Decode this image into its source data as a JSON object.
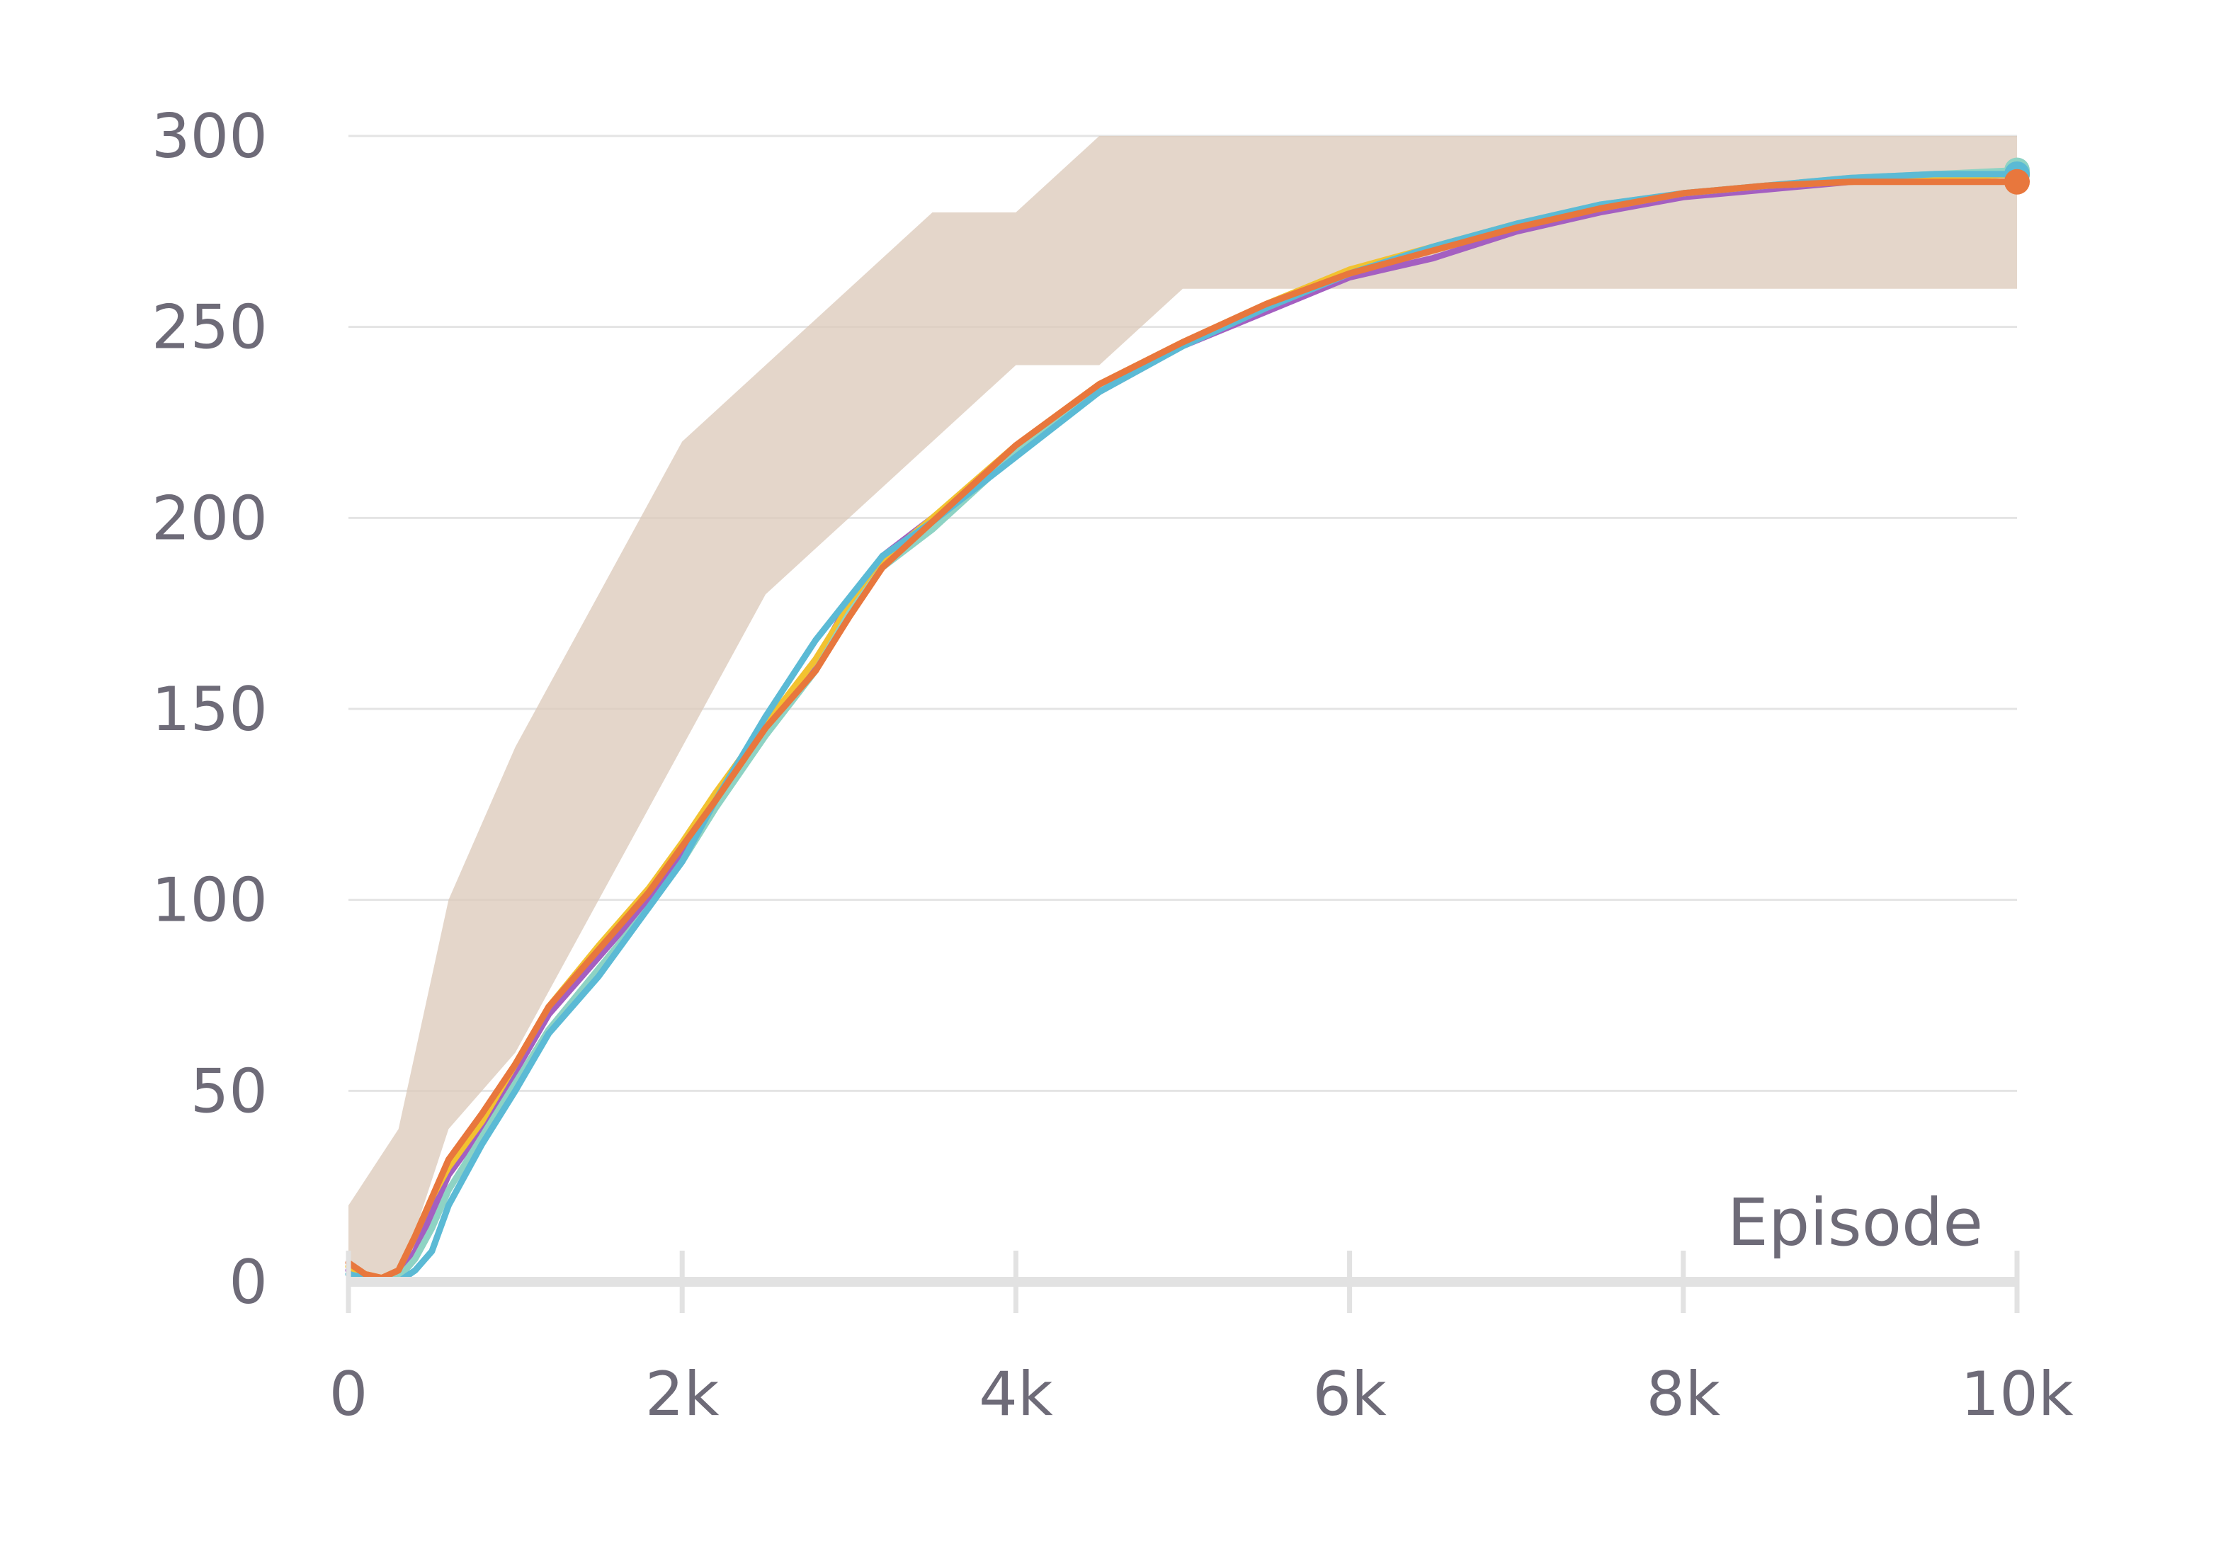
{
  "chart_data": {
    "type": "line",
    "title": "",
    "xlabel": "Episode",
    "ylabel": "",
    "xlim": [
      0,
      10000
    ],
    "ylim": [
      0,
      300
    ],
    "x_ticks": [
      0,
      2000,
      4000,
      6000,
      8000,
      10000
    ],
    "x_tick_labels": [
      "0",
      "2k",
      "4k",
      "6k",
      "8k",
      "10k"
    ],
    "y_ticks": [
      0,
      50,
      100,
      150,
      200,
      250,
      300
    ],
    "y_tick_labels": [
      "0",
      "50",
      "100",
      "150",
      "200",
      "250",
      "300"
    ],
    "grid": true,
    "legend": "none",
    "raw_band": {
      "color": "#dccbbb",
      "x": [
        0,
        300,
        600,
        1000,
        1500,
        2000,
        2500,
        3000,
        3500,
        4000,
        4500,
        5000,
        6000,
        7000,
        8000,
        9000,
        10000
      ],
      "upper": [
        20,
        40,
        100,
        140,
        180,
        220,
        240,
        260,
        280,
        280,
        300,
        300,
        300,
        300,
        300,
        300,
        300
      ],
      "lower": [
        0,
        0,
        40,
        60,
        100,
        140,
        180,
        200,
        220,
        240,
        240,
        260,
        260,
        260,
        260,
        260,
        260
      ]
    },
    "series": [
      {
        "color": "#a45fc1",
        "x": [
          0,
          100,
          200,
          300,
          400,
          500,
          600,
          800,
          1000,
          1200,
          1500,
          1800,
          2000,
          2200,
          2500,
          2800,
          3000,
          3200,
          3500,
          4000,
          4500,
          5000,
          5500,
          6000,
          6500,
          7000,
          7500,
          8000,
          8500,
          9000,
          9500,
          10000
        ],
        "y": [
          3,
          1,
          0,
          1,
          8,
          18,
          28,
          40,
          55,
          70,
          85,
          100,
          112,
          125,
          145,
          162,
          178,
          190,
          200,
          218,
          233,
          245,
          254,
          263,
          268,
          275,
          280,
          284,
          286,
          288,
          289,
          290
        ]
      },
      {
        "color": "#f2c230",
        "x": [
          0,
          100,
          200,
          300,
          400,
          500,
          600,
          800,
          1000,
          1200,
          1500,
          1800,
          2000,
          2200,
          2500,
          2800,
          3000,
          3200,
          3500,
          4000,
          4500,
          5000,
          5500,
          6000,
          6500,
          7000,
          7500,
          8000,
          8500,
          9000,
          9500,
          10000
        ],
        "y": [
          4,
          2,
          1,
          3,
          12,
          22,
          30,
          42,
          57,
          72,
          88,
          103,
          115,
          128,
          146,
          163,
          177,
          189,
          200,
          219,
          235,
          246,
          256,
          265,
          271,
          277,
          281,
          285,
          287,
          288,
          289,
          290
        ]
      },
      {
        "color": "#8ed3c4",
        "x": [
          0,
          100,
          200,
          300,
          400,
          500,
          600,
          800,
          1000,
          1200,
          1500,
          1800,
          2000,
          2200,
          2500,
          2800,
          3000,
          3200,
          3500,
          4000,
          4500,
          5000,
          5500,
          6000,
          6500,
          7000,
          7500,
          8000,
          8500,
          9000,
          9500,
          10000
        ],
        "y": [
          2,
          1,
          0,
          1,
          6,
          14,
          24,
          38,
          52,
          66,
          82,
          98,
          110,
          124,
          143,
          160,
          175,
          187,
          197,
          217,
          233,
          245,
          255,
          264,
          271,
          277,
          282,
          285,
          287,
          289,
          290,
          291
        ]
      },
      {
        "color": "#5bbad5",
        "x": [
          0,
          100,
          200,
          300,
          400,
          500,
          600,
          800,
          1000,
          1200,
          1500,
          1800,
          2000,
          2200,
          2500,
          2800,
          3000,
          3200,
          3500,
          4000,
          4500,
          5000,
          5500,
          6000,
          6500,
          7000,
          7500,
          8000,
          8500,
          9000,
          9500,
          10000
        ],
        "y": [
          2,
          1,
          0,
          0,
          3,
          8,
          20,
          36,
          50,
          65,
          80,
          98,
          110,
          126,
          148,
          168,
          179,
          190,
          199,
          216,
          233,
          245,
          255,
          264,
          271,
          277,
          282,
          285,
          287,
          289,
          290,
          290
        ]
      },
      {
        "color": "#e8773d",
        "x": [
          0,
          100,
          200,
          300,
          400,
          500,
          600,
          800,
          1000,
          1200,
          1500,
          1800,
          2000,
          2200,
          2500,
          2800,
          3000,
          3200,
          3500,
          4000,
          4500,
          5000,
          5500,
          6000,
          6500,
          7000,
          7500,
          8000,
          8500,
          9000,
          9500,
          10000
        ],
        "y": [
          5,
          2,
          1,
          3,
          12,
          22,
          32,
          44,
          57,
          72,
          87,
          102,
          114,
          126,
          145,
          160,
          174,
          187,
          199,
          219,
          235,
          246,
          256,
          264,
          270,
          276,
          281,
          285,
          287,
          288,
          288,
          288
        ]
      }
    ]
  }
}
